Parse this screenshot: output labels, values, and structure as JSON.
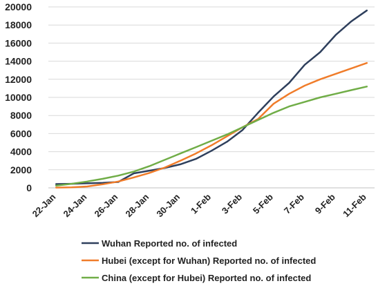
{
  "chart_data": {
    "type": "line",
    "title": "",
    "xlabel": "",
    "ylabel": "",
    "ylim": [
      0,
      20000
    ],
    "y_ticks": [
      0,
      2000,
      4000,
      6000,
      8000,
      10000,
      12000,
      14000,
      16000,
      18000,
      20000
    ],
    "x": [
      "22-Jan",
      "23-Jan",
      "24-Jan",
      "25-Jan",
      "26-Jan",
      "27-Jan",
      "28-Jan",
      "29-Jan",
      "30-Jan",
      "31-Jan",
      "1-Feb",
      "2-Feb",
      "3-Feb",
      "4-Feb",
      "5-Feb",
      "6-Feb",
      "7-Feb",
      "8-Feb",
      "9-Feb",
      "10-Feb",
      "11-Feb"
    ],
    "x_tick_labels": [
      "22-Jan",
      "24-Jan",
      "26-Jan",
      "28-Jan",
      "30-Jan",
      "1-Feb",
      "3-Feb",
      "5-Feb",
      "7-Feb",
      "9-Feb",
      "11-Feb"
    ],
    "grid": true,
    "legend_position": "bottom",
    "series": [
      {
        "name": "Wuhan Reported no. of infected",
        "color": "#2e3f5c",
        "values": [
          420,
          450,
          500,
          550,
          650,
          1600,
          1900,
          2200,
          2600,
          3200,
          4100,
          5100,
          6400,
          8300,
          10100,
          11600,
          13600,
          15000,
          16900,
          18400,
          19600
        ]
      },
      {
        "name": "Hubei (except for Wuhan) Reported no. of infected",
        "color": "#f07c2a",
        "values": [
          30,
          50,
          150,
          400,
          700,
          1150,
          1650,
          2250,
          3000,
          3800,
          4700,
          5700,
          6700,
          7600,
          9300,
          10400,
          11300,
          12000,
          12600,
          13200,
          13800
        ]
      },
      {
        "name": "China (except for Hubei) Reported no. of infected",
        "color": "#70ad47",
        "values": [
          250,
          450,
          700,
          1000,
          1350,
          1800,
          2400,
          3100,
          3800,
          4500,
          5200,
          5900,
          6700,
          7500,
          8300,
          9000,
          9500,
          10000,
          10400,
          10800,
          11200
        ]
      }
    ]
  }
}
